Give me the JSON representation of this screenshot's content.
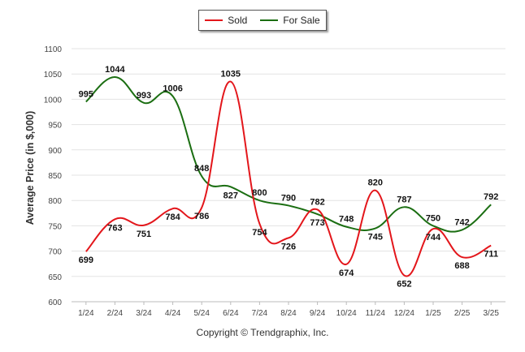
{
  "chart_data": {
    "type": "line",
    "x": [
      "1/24",
      "2/24",
      "3/24",
      "4/24",
      "5/24",
      "6/24",
      "7/24",
      "8/24",
      "9/24",
      "10/24",
      "11/24",
      "12/24",
      "1/25",
      "2/25",
      "3/25"
    ],
    "series": [
      {
        "name": "Sold",
        "color": "#e3161b",
        "values": [
          699,
          763,
          751,
          784,
          786,
          1035,
          754,
          726,
          782,
          674,
          820,
          652,
          744,
          688,
          711
        ]
      },
      {
        "name": "For Sale",
        "color": "#1b6e12",
        "values": [
          995,
          1044,
          993,
          1006,
          848,
          827,
          800,
          790,
          773,
          748,
          745,
          787,
          750,
          742,
          792
        ]
      }
    ],
    "ylabel": "Average Price (in $,000)",
    "ylim": [
      600,
      1100
    ],
    "yticks": [
      600,
      650,
      700,
      750,
      800,
      850,
      900,
      950,
      1000,
      1050,
      1100
    ],
    "grid": true,
    "legend": "top-center"
  },
  "footer": {
    "copyright": "Copyright © Trendgraphix, Inc."
  }
}
